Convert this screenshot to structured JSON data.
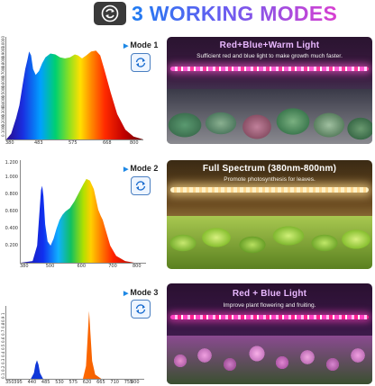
{
  "header": {
    "title": "3 WORKING MODES",
    "icon": "cycle-arrows-icon"
  },
  "modes": [
    {
      "label": "Mode 1",
      "panel_title": "Red+Blue+Warm Light",
      "panel_subtitle": "Sufficient red and blue light to make growth much faster.",
      "panel_title_color": "#e9b8ff",
      "chart_data": {
        "type": "area",
        "x_ticks": [
          "380",
          "483",
          "575",
          "668",
          "800"
        ],
        "y_ticks": [
          "1.0000",
          "0.9000",
          "0.8000",
          "0.7000",
          "0.6000",
          "0.5000",
          "0.4000",
          "0.3000",
          "0.2000",
          "0.1000"
        ],
        "x": [
          380,
          395,
          410,
          420,
          430,
          438,
          445,
          450,
          456,
          462,
          470,
          480,
          490,
          500,
          515,
          530,
          545,
          560,
          575,
          590,
          600,
          612,
          625,
          640,
          655,
          668,
          680,
          700,
          720,
          745,
          770,
          800
        ],
        "y": [
          0.0,
          0.06,
          0.22,
          0.35,
          0.56,
          0.72,
          0.82,
          0.9,
          0.86,
          0.72,
          0.66,
          0.7,
          0.78,
          0.84,
          0.88,
          0.87,
          0.84,
          0.83,
          0.84,
          0.87,
          0.86,
          0.83,
          0.86,
          0.9,
          0.91,
          0.86,
          0.72,
          0.48,
          0.26,
          0.1,
          0.03,
          0.0
        ],
        "xlim": [
          380,
          800
        ],
        "ylim": [
          0,
          1.05
        ]
      }
    },
    {
      "label": "Mode 2",
      "panel_title": "Full Spectrum (380nm-800nm)",
      "panel_subtitle": "Promote photosynthesis for leaves.",
      "panel_title_color": "#ffffff",
      "chart_data": {
        "type": "area",
        "x_ticks": [
          "380",
          "500",
          "600",
          "700",
          "800"
        ],
        "y_ticks": [
          "1.200",
          "1.000",
          "0.800",
          "0.600",
          "0.400",
          "0.200"
        ],
        "x": [
          380,
          420,
          435,
          442,
          448,
          452,
          456,
          462,
          470,
          480,
          490,
          500,
          510,
          520,
          530,
          545,
          560,
          575,
          590,
          600,
          612,
          625,
          640,
          648,
          655,
          665,
          680,
          700,
          730,
          760,
          800
        ],
        "y": [
          0.0,
          0.02,
          0.2,
          0.55,
          0.85,
          0.9,
          0.78,
          0.45,
          0.25,
          0.2,
          0.28,
          0.4,
          0.5,
          0.56,
          0.6,
          0.64,
          0.72,
          0.82,
          0.92,
          0.98,
          0.96,
          0.86,
          0.62,
          0.55,
          0.5,
          0.38,
          0.2,
          0.08,
          0.02,
          0.0,
          0.0
        ],
        "xlim": [
          380,
          800
        ],
        "ylim": [
          0,
          1.2
        ]
      }
    },
    {
      "label": "Mode 3",
      "panel_title": "Red + Blue Light",
      "panel_subtitle": "Improve plant flowering and fruiting.",
      "panel_title_color": "#e9b8ff",
      "chart_data": {
        "type": "area",
        "x_ticks": [
          "350",
          "395",
          "440",
          "485",
          "530",
          "575",
          "620",
          "665",
          "710",
          "755",
          "800"
        ],
        "y_ticks": [
          "1",
          "0.9",
          "0.8",
          "0.7",
          "0.6",
          "0.5",
          "0.4",
          "0.3",
          "0.2",
          "0.1"
        ],
        "x": [
          350,
          430,
          440,
          445,
          450,
          455,
          460,
          470,
          600,
          610,
          615,
          620,
          625,
          630,
          640,
          660,
          800
        ],
        "y": [
          0.0,
          0.0,
          0.08,
          0.2,
          0.26,
          0.2,
          0.08,
          0.0,
          0.0,
          0.18,
          0.55,
          0.95,
          0.6,
          0.25,
          0.06,
          0.0,
          0.0
        ],
        "xlim": [
          350,
          800
        ],
        "ylim": [
          0,
          1.02
        ]
      }
    }
  ],
  "colors": {
    "title_start": "#1f7cf2",
    "title_end": "#d83fd0",
    "mode_icon": "#4a7fc1"
  }
}
